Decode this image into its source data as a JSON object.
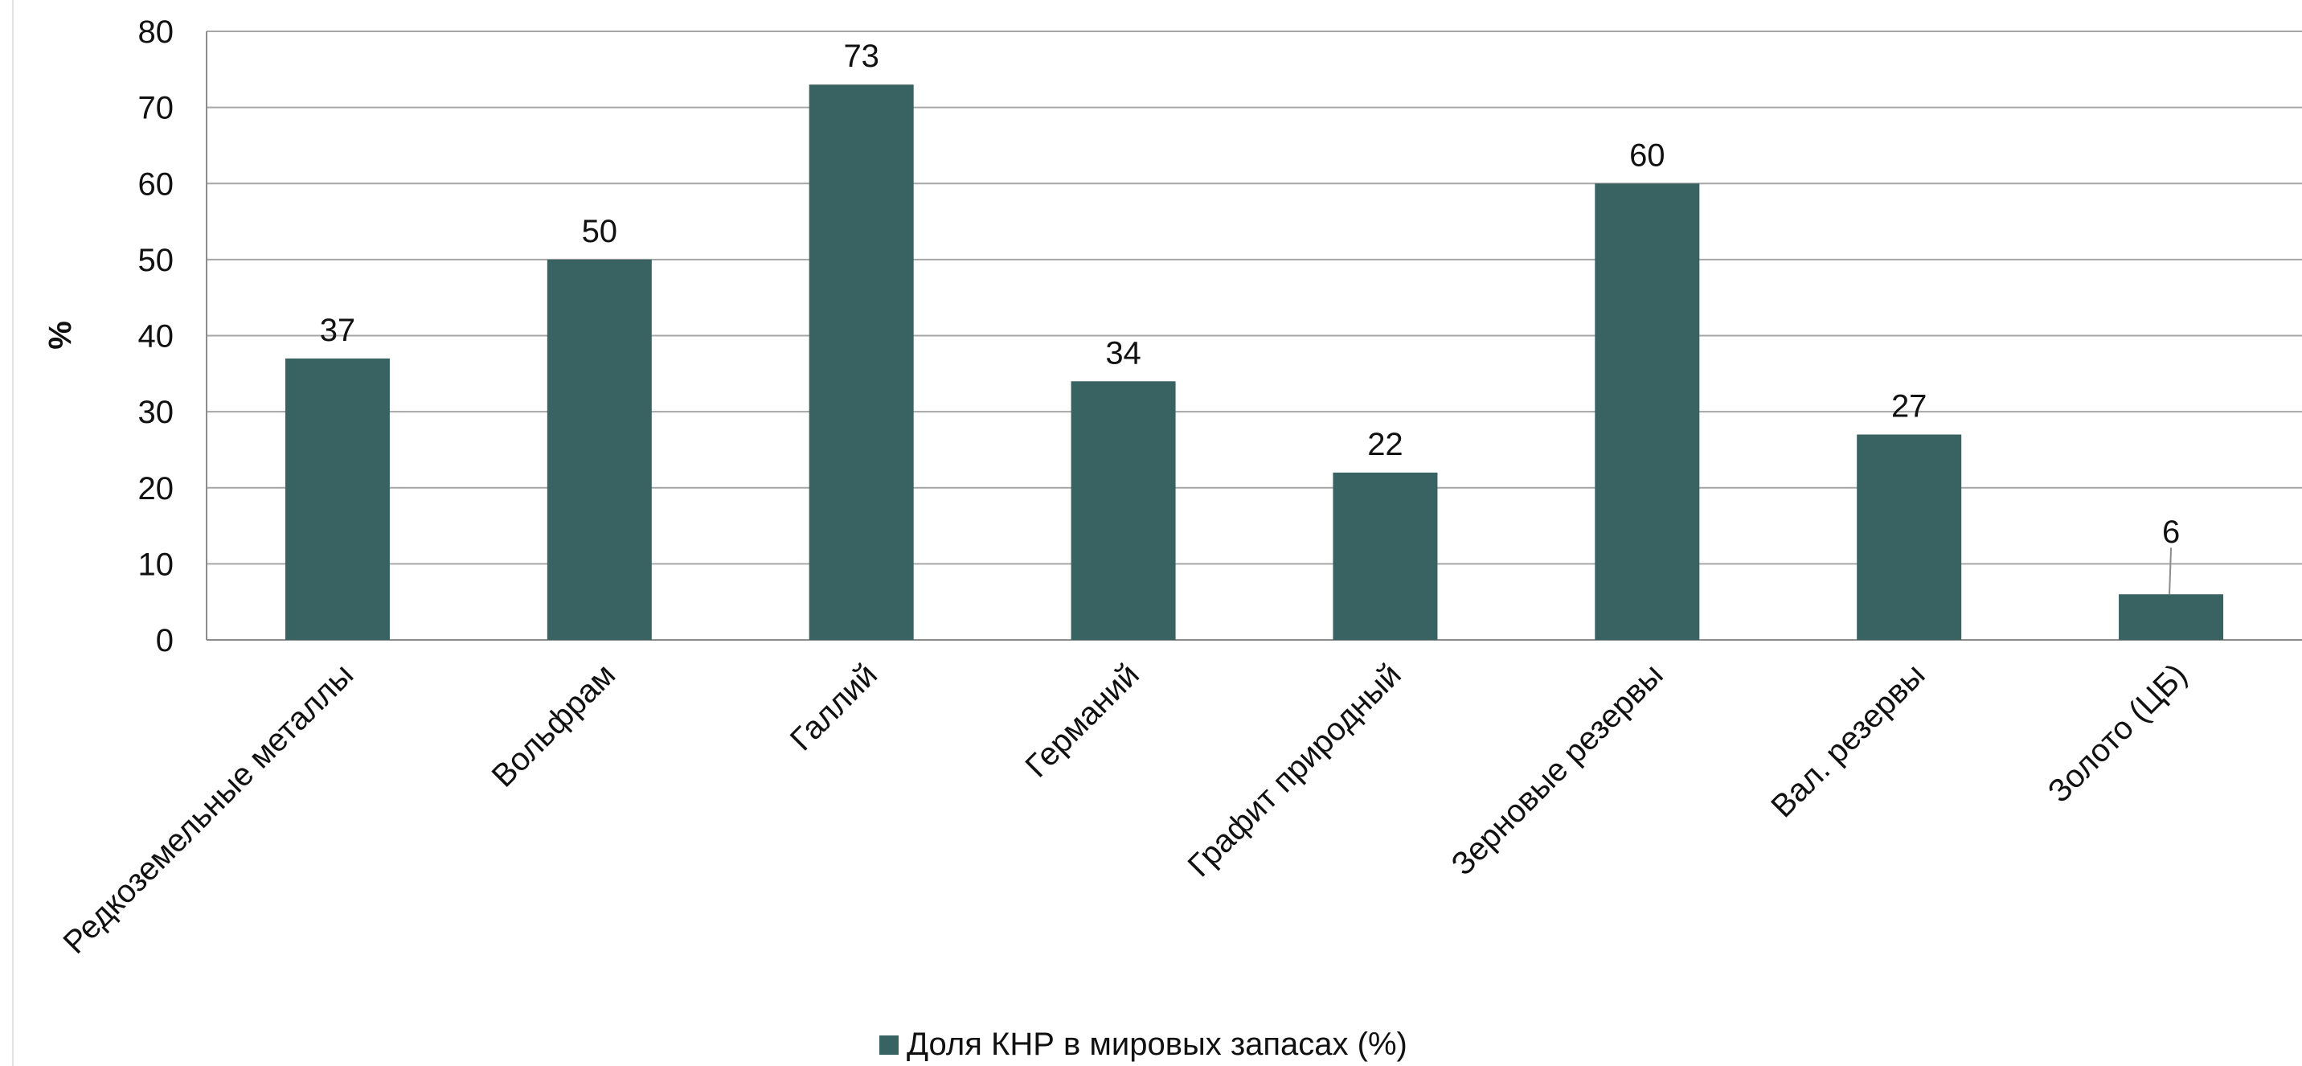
{
  "chart_data": {
    "type": "bar",
    "title": "",
    "xlabel": "",
    "ylabel": "%",
    "ylim": [
      0,
      80
    ],
    "yticks": [
      0,
      10,
      20,
      30,
      40,
      50,
      60,
      70,
      80
    ],
    "grid": true,
    "legend_position": "bottom",
    "categories": [
      "Редкоземельные металлы",
      "Вольфрам",
      "Галлий",
      "Германий",
      "Графит природный",
      "Зерновые резервы",
      "Вал. резервы",
      "Золото (ЦБ)"
    ],
    "series": [
      {
        "name": "Доля КНР в мировых запасах (%)",
        "values": [
          37,
          50,
          73,
          34,
          22,
          60,
          27,
          6
        ],
        "color": "#386362"
      }
    ],
    "data_labels": [
      "37",
      "50",
      "73",
      "34",
      "22",
      "60",
      "27",
      "6"
    ]
  },
  "colors": {
    "bar": "#386362",
    "grid": "#a6a6a6",
    "axis": "#8c8c8c",
    "text": "#111111"
  }
}
